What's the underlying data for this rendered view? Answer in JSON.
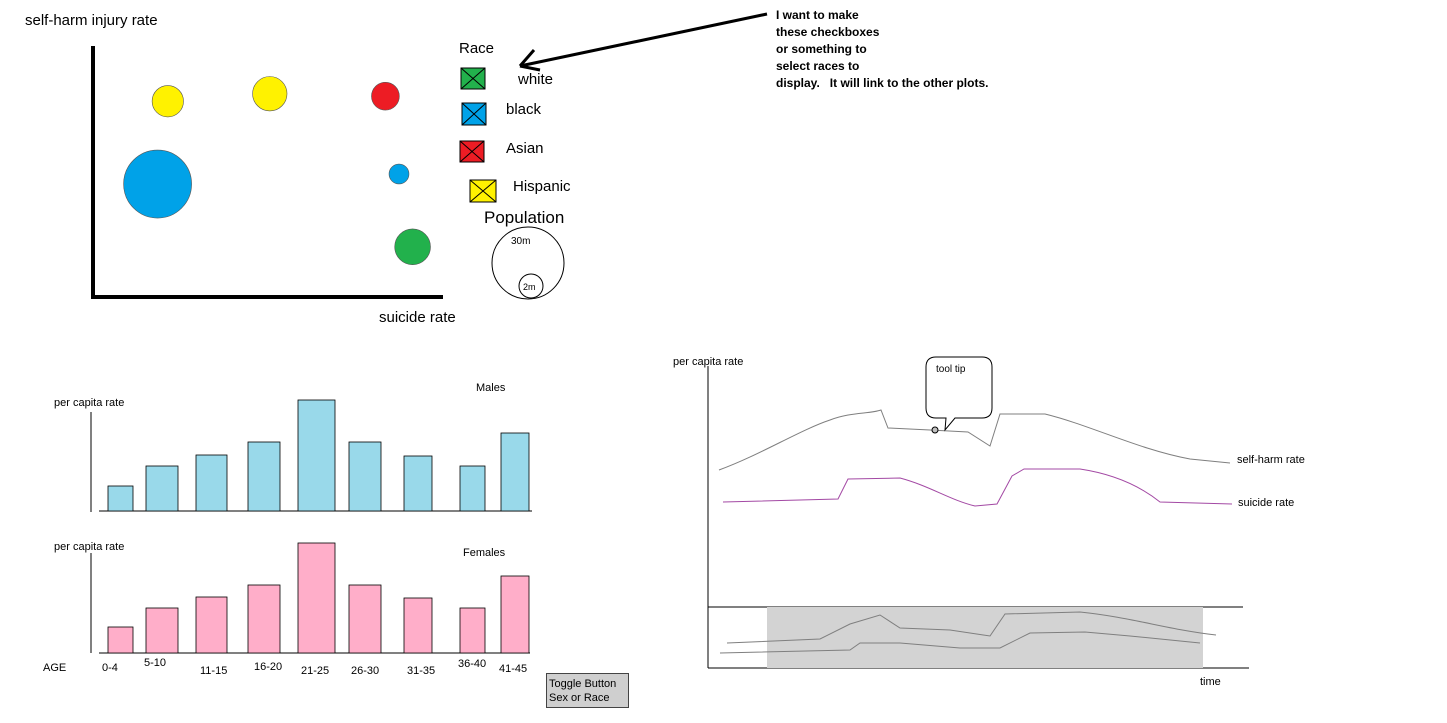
{
  "bubble": {
    "ylabel": "self-harm injury rate",
    "xlabel": "suicide rate",
    "legend_title": "Race",
    "population_title": "Population",
    "pop_big": "30m",
    "pop_small": "2m",
    "colors": {
      "white": "#22b14c",
      "black": "#00a2e8",
      "asian": "#ed1c24",
      "hispanic": "#fff200"
    }
  },
  "chart_data": [
    {
      "type": "scatter",
      "title": "",
      "xlabel": "suicide rate",
      "ylabel": "self-harm injury rate",
      "legend": [
        "white",
        "black",
        "Asian",
        "Hispanic"
      ],
      "points": [
        {
          "series": "Hispanic",
          "x": 0.22,
          "y": 0.78,
          "size": 0.12
        },
        {
          "series": "Hispanic",
          "x": 0.52,
          "y": 0.81,
          "size": 0.16
        },
        {
          "series": "Asian",
          "x": 0.86,
          "y": 0.8,
          "size": 0.08
        },
        {
          "series": "black",
          "x": 0.19,
          "y": 0.45,
          "size": 1.0
        },
        {
          "series": "black",
          "x": 0.9,
          "y": 0.49,
          "size": 0.02
        },
        {
          "series": "white",
          "x": 0.94,
          "y": 0.2,
          "size": 0.18
        }
      ]
    },
    {
      "type": "bar",
      "title": "Males",
      "xlabel": "AGE",
      "ylabel": "per capita rate",
      "categories": [
        "0-4",
        "5-10",
        "11-15",
        "16-20",
        "21-25",
        "26-30",
        "31-35",
        "36-40",
        "41-45"
      ],
      "values": [
        25,
        45,
        56,
        69,
        111,
        69,
        55,
        45,
        78
      ],
      "color": "#99d9ea"
    },
    {
      "type": "bar",
      "title": "Females",
      "xlabel": "AGE",
      "ylabel": "per capita rate",
      "categories": [
        "0-4",
        "5-10",
        "11-15",
        "16-20",
        "21-25",
        "26-30",
        "31-35",
        "36-40",
        "41-45"
      ],
      "values": [
        26,
        45,
        56,
        68,
        110,
        68,
        55,
        45,
        77
      ],
      "color": "#ffaec9"
    },
    {
      "type": "line",
      "title": "",
      "xlabel": "time",
      "ylabel": "per capita rate",
      "series": [
        {
          "name": "self-harm rate",
          "color": "#888888"
        },
        {
          "name": "suicide rate",
          "color": "#a349a4"
        }
      ]
    }
  ],
  "legend_items": [
    "white",
    "black",
    "Asian",
    "Hispanic"
  ],
  "annotation": "I want to make\nthese checkboxes\nor something to\nselect races to\ndisplay.   It will link to the other plots.",
  "bars": {
    "males_title": "Males",
    "females_title": "Females",
    "ylabel": "per capita rate",
    "age_label": "AGE"
  },
  "line": {
    "ylabel": "per capita rate",
    "xlabel": "time",
    "tooltip": "tool tip",
    "selfharm_label": "self-harm rate",
    "suicide_label": "suicide rate"
  },
  "toggle": {
    "line1": "Toggle Button",
    "line2": "Sex or Race"
  }
}
